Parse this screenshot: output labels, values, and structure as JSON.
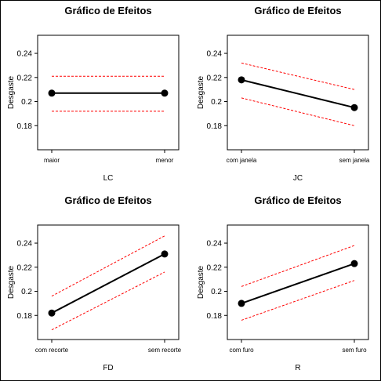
{
  "chart_data": [
    {
      "type": "line",
      "title": "Gráfico de Efeitos",
      "xlabel": "LC",
      "ylabel": "Desgaste",
      "categories": [
        "maior",
        "menor"
      ],
      "values": [
        0.207,
        0.207
      ],
      "lower": [
        0.192,
        0.192
      ],
      "upper": [
        0.221,
        0.221
      ],
      "ylim": [
        0.16,
        0.255
      ],
      "yticks": [
        "0.18",
        "0.2",
        "0.22",
        "0.24"
      ],
      "colors": {
        "effect": "#000000",
        "ci": "#ff0000"
      }
    },
    {
      "type": "line",
      "title": "Gráfico de Efeitos",
      "xlabel": "JC",
      "ylabel": "Desgaste",
      "categories": [
        "com janela",
        "sem janela"
      ],
      "values": [
        0.218,
        0.195
      ],
      "lower": [
        0.203,
        0.18
      ],
      "upper": [
        0.232,
        0.21
      ],
      "ylim": [
        0.16,
        0.255
      ],
      "yticks": [
        "0.18",
        "0.2",
        "0.22",
        "0.24"
      ],
      "colors": {
        "effect": "#000000",
        "ci": "#ff0000"
      }
    },
    {
      "type": "line",
      "title": "Gráfico de Efeitos",
      "xlabel": "FD",
      "ylabel": "Desgaste",
      "categories": [
        "com recorte",
        "sem recorte"
      ],
      "values": [
        0.182,
        0.231
      ],
      "lower": [
        0.168,
        0.216
      ],
      "upper": [
        0.196,
        0.246
      ],
      "ylim": [
        0.16,
        0.255
      ],
      "yticks": [
        "0.18",
        "0.2",
        "0.22",
        "0.24"
      ],
      "colors": {
        "effect": "#000000",
        "ci": "#ff0000"
      }
    },
    {
      "type": "line",
      "title": "Gráfico de Efeitos",
      "xlabel": "R",
      "ylabel": "Desgaste",
      "categories": [
        "com furo",
        "sem furo"
      ],
      "values": [
        0.19,
        0.223
      ],
      "lower": [
        0.176,
        0.209
      ],
      "upper": [
        0.204,
        0.238
      ],
      "ylim": [
        0.16,
        0.255
      ],
      "yticks": [
        "0.18",
        "0.2",
        "0.22",
        "0.24"
      ],
      "colors": {
        "effect": "#000000",
        "ci": "#ff0000"
      }
    }
  ]
}
